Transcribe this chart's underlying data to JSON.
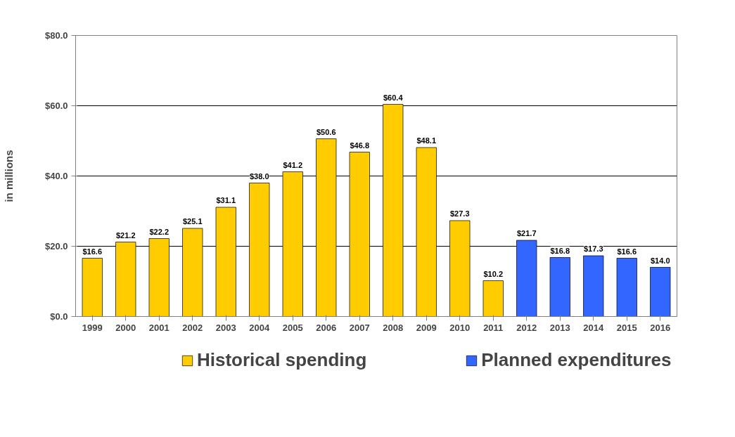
{
  "chart_data": {
    "type": "bar",
    "ylabel": "in millions",
    "categories": [
      "1999",
      "2000",
      "2001",
      "2002",
      "2003",
      "2004",
      "2005",
      "2006",
      "2007",
      "2008",
      "2009",
      "2010",
      "2011",
      "2012",
      "2013",
      "2014",
      "2015",
      "2016"
    ],
    "series": [
      {
        "name": "Historical spending",
        "color": "#ffcc00",
        "values": [
          16.6,
          21.2,
          22.2,
          25.1,
          31.1,
          38.0,
          41.2,
          50.6,
          46.8,
          60.4,
          48.1,
          27.3,
          10.2,
          null,
          null,
          null,
          null,
          null
        ],
        "value_labels": [
          "$16.6",
          "$21.2",
          "$22.2",
          "$25.1",
          "$31.1",
          "$38.0",
          "$41.2",
          "$50.6",
          "$46.8",
          "$60.4",
          "$48.1",
          "$27.3",
          "$10.2",
          null,
          null,
          null,
          null,
          null
        ]
      },
      {
        "name": "Planned expenditures",
        "color": "#3366ff",
        "values": [
          null,
          null,
          null,
          null,
          null,
          null,
          null,
          null,
          null,
          null,
          null,
          null,
          null,
          21.7,
          16.8,
          17.3,
          16.6,
          14.0
        ],
        "value_labels": [
          null,
          null,
          null,
          null,
          null,
          null,
          null,
          null,
          null,
          null,
          null,
          null,
          null,
          "$21.7",
          "$16.8",
          "$17.3",
          "$16.6",
          "$14.0"
        ]
      }
    ],
    "ylim": [
      0,
      80
    ],
    "yticks": [
      {
        "value": 0,
        "label": "$0.0"
      },
      {
        "value": 20,
        "label": "$20.0"
      },
      {
        "value": 40,
        "label": "$40.0"
      },
      {
        "value": 60,
        "label": "$60.0"
      },
      {
        "value": 80,
        "label": "$80.0"
      }
    ],
    "grid": "y",
    "legend": "bottom"
  }
}
